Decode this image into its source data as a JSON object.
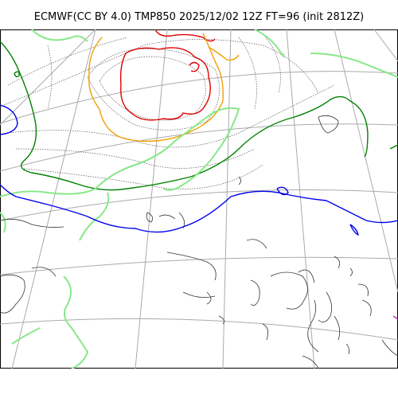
{
  "title": "ECMWF(CC BY 4.0) TMP850 2025/12/02 12Z FT=96 (init 2812Z)",
  "contour_colors": {
    "warm_red": "#e00000",
    "orange": "#f0a000",
    "dark_green": "#008000",
    "light_green": "#88e888",
    "blue": "#0000ee",
    "magenta": "#c000c0"
  }
}
